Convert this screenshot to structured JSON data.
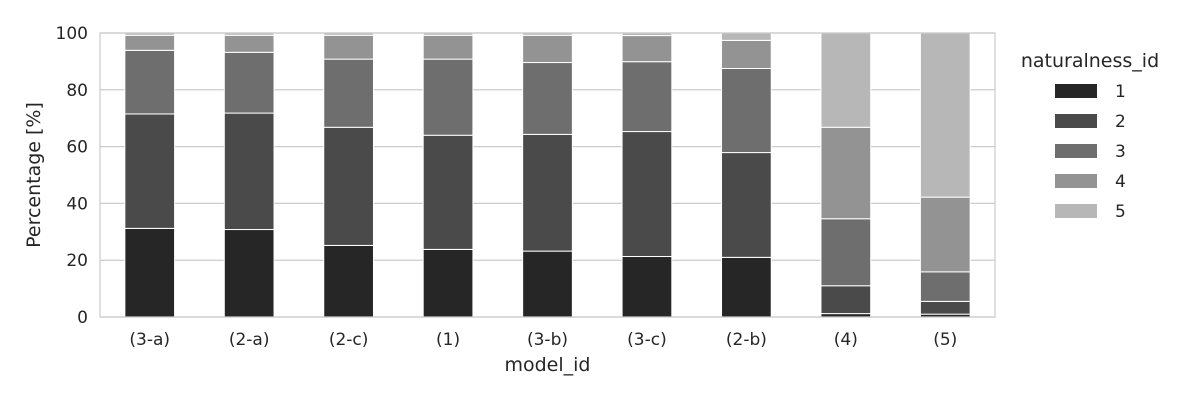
{
  "chart_data": {
    "type": "bar",
    "stacked": true,
    "categories": [
      "(3-a)",
      "(2-a)",
      "(2-c)",
      "(1)",
      "(3-b)",
      "(3-c)",
      "(2-b)",
      "(4)",
      "(5)"
    ],
    "series": [
      {
        "name": "1",
        "color": "#262626",
        "values": [
          31.2,
          30.8,
          25.2,
          23.8,
          23.2,
          21.3,
          21.0,
          1.2,
          1.0
        ]
      },
      {
        "name": "2",
        "color": "#4a4a4a",
        "values": [
          40.3,
          41.0,
          41.6,
          40.2,
          41.1,
          44.0,
          36.9,
          9.8,
          4.5
        ]
      },
      {
        "name": "3",
        "color": "#6e6e6e",
        "values": [
          22.4,
          21.4,
          24.0,
          26.8,
          25.3,
          24.6,
          29.6,
          23.6,
          10.4
        ]
      },
      {
        "name": "4",
        "color": "#939393",
        "values": [
          5.3,
          6.0,
          8.4,
          8.4,
          9.6,
          9.2,
          9.9,
          32.2,
          26.3
        ]
      },
      {
        "name": "5",
        "color": "#b7b7b7",
        "values": [
          0.8,
          0.8,
          0.8,
          0.8,
          0.8,
          0.9,
          2.6,
          33.2,
          57.8
        ]
      }
    ],
    "xlabel": "model_id",
    "ylabel": "Percentage [%]",
    "ylim": [
      0,
      100
    ],
    "yticks": [
      0,
      20,
      40,
      60,
      80,
      100
    ],
    "grid": "horizontal",
    "legend": {
      "title": "naturalness_id",
      "placement": "outside-right"
    }
  }
}
